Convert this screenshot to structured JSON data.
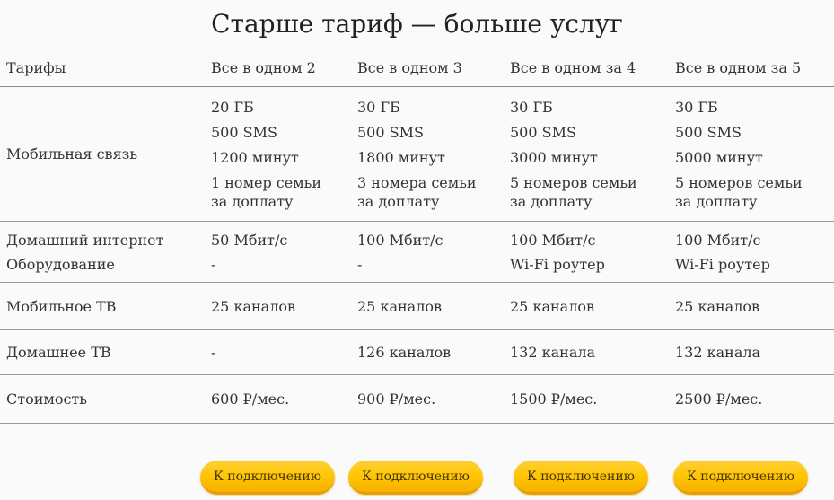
{
  "title": "Старше тариф — больше услуг",
  "colors": {
    "background": "#fafafa",
    "text": "#333333",
    "divider": "#999999",
    "button_yellow": "#ffc400",
    "button_rim": "#e5a000",
    "button_text": "#433300"
  },
  "table": {
    "header": {
      "label": "Тарифы",
      "plans": [
        "Все в одном 2",
        "Все в одном 3",
        "Все в одном за 4",
        "Все в одном за 5"
      ]
    },
    "rows": {
      "mobile": {
        "label": "Мобильная связь",
        "cells": [
          {
            "data": "20 ГБ",
            "sms": "500 SMS",
            "minutes": "1200 минут",
            "family": "1 номер семьи за доплату"
          },
          {
            "data": "30 ГБ",
            "sms": "500 SMS",
            "minutes": "1800 минут",
            "family": "3 номера семьи за доплату"
          },
          {
            "data": "30 ГБ",
            "sms": "500 SMS",
            "minutes": "3000 минут",
            "family": "5 номеров семьи за доплату"
          },
          {
            "data": "30 ГБ",
            "sms": "500 SMS",
            "minutes": "5000 минут",
            "family": "5 номеров семьи за доплату"
          }
        ]
      },
      "internet": {
        "label_line1": "Домашний интернет",
        "label_line2": "Оборудование",
        "cells": [
          {
            "speed": "50 Мбит/с",
            "equipment": "-"
          },
          {
            "speed": "100 Мбит/с",
            "equipment": "-"
          },
          {
            "speed": "100 Мбит/с",
            "equipment": "Wi-Fi роутер"
          },
          {
            "speed": "100 Мбит/с",
            "equipment": "Wi-Fi роутер"
          }
        ]
      },
      "mobile_tv": {
        "label": "Мобильное ТВ",
        "cells": [
          "25 каналов",
          "25 каналов",
          "25 каналов",
          "25 каналов"
        ]
      },
      "home_tv": {
        "label": "Домашнее ТВ",
        "cells": [
          "-",
          "126 каналов",
          "132 канала",
          "132 канала"
        ]
      },
      "price": {
        "label": "Стоимость",
        "cells": [
          "600 ₽/мес.",
          "900 ₽/мес.",
          "1500 ₽/мес.",
          "2500 ₽/мес."
        ]
      }
    }
  },
  "buttons": {
    "connect_label": "К подключению"
  }
}
